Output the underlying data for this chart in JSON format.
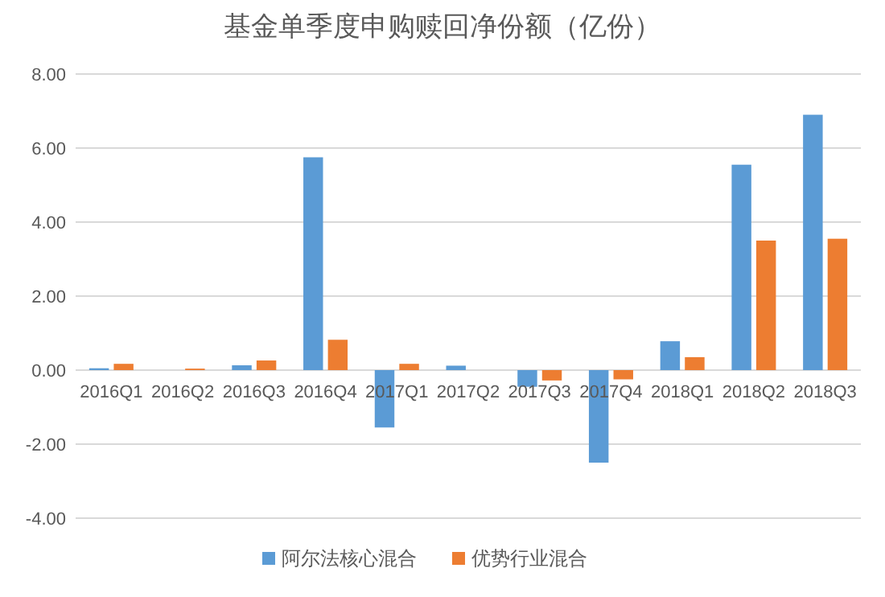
{
  "chart_data": {
    "type": "bar",
    "title": "基金单季度申购赎回净份额（亿份）",
    "categories": [
      "2016Q1",
      "2016Q2",
      "2016Q3",
      "2016Q4",
      "2017Q1",
      "2017Q2",
      "2017Q3",
      "2017Q4",
      "2018Q1",
      "2018Q2",
      "2018Q3"
    ],
    "series": [
      {
        "name": "阿尔法核心混合",
        "color": "#5b9bd5",
        "values": [
          0.05,
          0,
          0.13,
          5.75,
          -1.55,
          0.12,
          -0.45,
          -2.5,
          0.78,
          5.55,
          6.9
        ]
      },
      {
        "name": "优势行业混合",
        "color": "#ed7d31",
        "values": [
          0.17,
          0.04,
          0.26,
          0.82,
          0.17,
          0,
          -0.28,
          -0.25,
          0.35,
          3.5,
          3.55
        ]
      }
    ],
    "ylim": [
      -4,
      8
    ],
    "yticks": [
      {
        "value": -4,
        "label": "-4.00"
      },
      {
        "value": -2,
        "label": "-2.00"
      },
      {
        "value": 0,
        "label": "0.00"
      },
      {
        "value": 2,
        "label": "2.00"
      },
      {
        "value": 4,
        "label": "4.00"
      },
      {
        "value": 6,
        "label": "6.00"
      },
      {
        "value": 8,
        "label": "8.00"
      }
    ],
    "grid": "y",
    "legend": "bottom"
  }
}
